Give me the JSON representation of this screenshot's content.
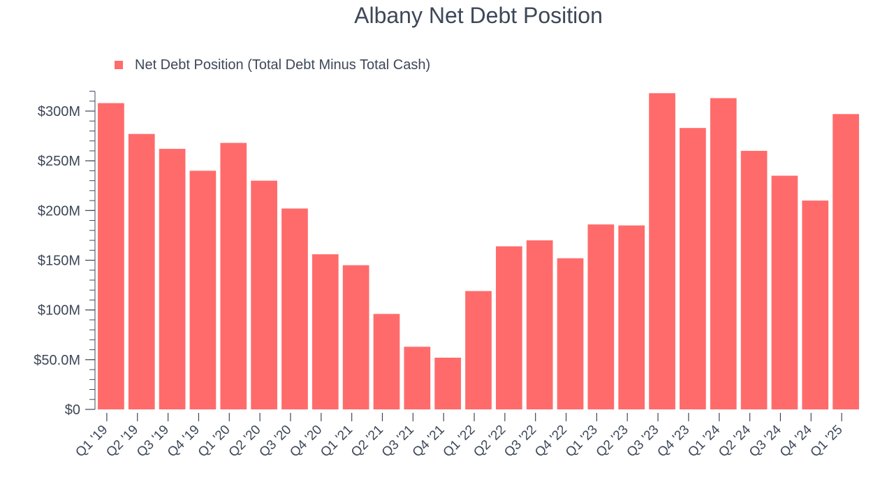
{
  "chart_data": {
    "type": "bar",
    "title": "Albany Net Debt Position",
    "xlabel": "",
    "ylabel": "",
    "legend_position": "top-left",
    "grid": false,
    "ylim": [
      0,
      320
    ],
    "y_ticks": [
      {
        "value": 0,
        "label": "$0"
      },
      {
        "value": 50,
        "label": "$50.0M"
      },
      {
        "value": 100,
        "label": "$100M"
      },
      {
        "value": 150,
        "label": "$150M"
      },
      {
        "value": 200,
        "label": "$200M"
      },
      {
        "value": 250,
        "label": "$250M"
      },
      {
        "value": 300,
        "label": "$300M"
      }
    ],
    "categories": [
      "Q1 '19",
      "Q2 '19",
      "Q3 '19",
      "Q4 '19",
      "Q1 '20",
      "Q2 '20",
      "Q3 '20",
      "Q4 '20",
      "Q1 '21",
      "Q2 '21",
      "Q3 '21",
      "Q4 '21",
      "Q1 '22",
      "Q2 '22",
      "Q3 '22",
      "Q4 '22",
      "Q1 '23",
      "Q2 '23",
      "Q3 '23",
      "Q4 '23",
      "Q1 '24",
      "Q2 '24",
      "Q3 '24",
      "Q4 '24",
      "Q1 '25"
    ],
    "series": [
      {
        "name": "Net Debt Position (Total Debt Minus Total Cash)",
        "color": "#ff6b6b",
        "values": [
          308,
          277,
          262,
          240,
          268,
          230,
          202,
          156,
          145,
          96,
          63,
          52,
          119,
          164,
          170,
          152,
          186,
          185,
          318,
          283,
          313,
          260,
          235,
          210,
          297
        ]
      }
    ]
  }
}
